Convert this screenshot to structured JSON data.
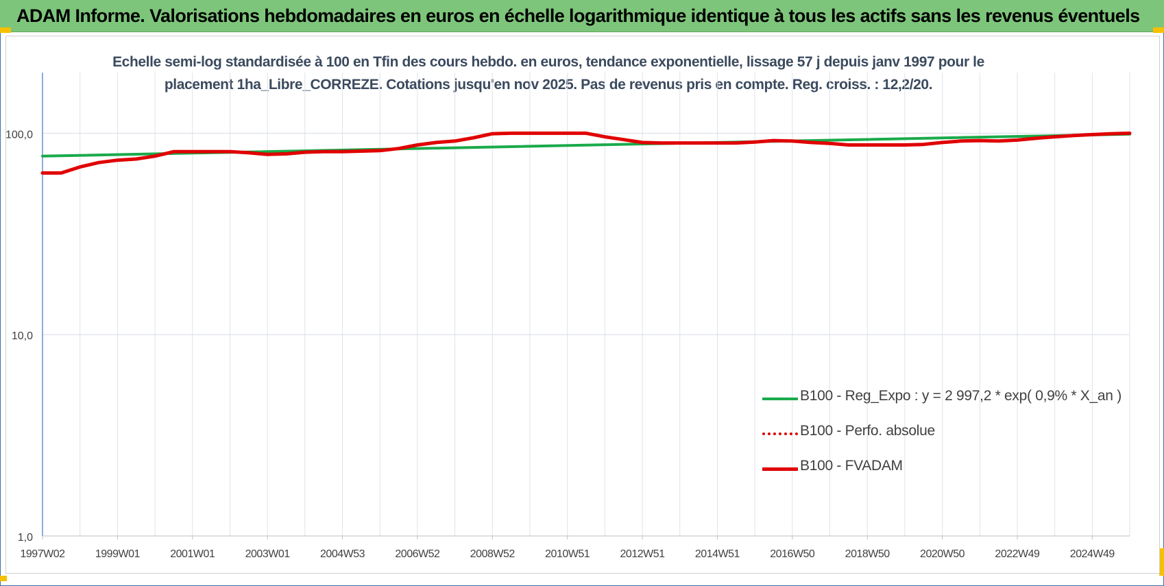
{
  "header": {
    "title": "ADAM Informe. Valorisations hebdomadaires en euros en échelle logarithmique identique à tous les actifs sans les revenus éventuels"
  },
  "chart_data": {
    "type": "line",
    "subtitle_line1": "Echelle semi-log standardisée à 100 en Tfin des cours hebdo. en euros, tendance exponentielle, lissage 57 j depuis janv 1997 pour le",
    "subtitle_line2": "placement 1ha_Libre_CORREZE. Cotations jusqu'en nov 2025. Pas de revenus pris en compte. Reg. croiss. : 12,2/20.",
    "y_scale": "log",
    "ylim": [
      1,
      200
    ],
    "xlim": [
      1997.0,
      2026.0
    ],
    "y_ticks": [
      {
        "value": 1,
        "label": "1,0"
      },
      {
        "value": 10,
        "label": "10,0"
      },
      {
        "value": 100,
        "label": "100,0"
      }
    ],
    "x_ticks": [
      {
        "value": 1997.0,
        "label": "1997W02"
      },
      {
        "value": 1999.0,
        "label": "1999W01"
      },
      {
        "value": 2001.0,
        "label": "2001W01"
      },
      {
        "value": 2003.0,
        "label": "2003W01"
      },
      {
        "value": 2005.0,
        "label": "2004W53"
      },
      {
        "value": 2007.0,
        "label": "2006W52"
      },
      {
        "value": 2009.0,
        "label": "2008W52"
      },
      {
        "value": 2011.0,
        "label": "2010W51"
      },
      {
        "value": 2013.0,
        "label": "2012W51"
      },
      {
        "value": 2015.0,
        "label": "2014W51"
      },
      {
        "value": 2017.0,
        "label": "2016W50"
      },
      {
        "value": 2019.0,
        "label": "2018W50"
      },
      {
        "value": 2021.0,
        "label": "2020W50"
      },
      {
        "value": 2023.0,
        "label": "2022W49"
      },
      {
        "value": 2025.0,
        "label": "2024W49"
      }
    ],
    "grid": true,
    "legend_position": "bottom-right",
    "series": [
      {
        "name": "B100 - Reg_Expo : y = 2 997,2 * exp( 0,9% *  X_an )",
        "color": "#1aaa4a",
        "style": "solid",
        "points": [
          [
            1997.0,
            77
          ],
          [
            2026.0,
            99
          ]
        ]
      },
      {
        "name": "B100 - Perfo. absolue",
        "color": "#e00000",
        "style": "dotted",
        "points": [
          [
            1997.0,
            63.5
          ],
          [
            1997.5,
            63.5
          ],
          [
            1998.0,
            68
          ],
          [
            1998.5,
            71.5
          ],
          [
            1999.0,
            73.5
          ],
          [
            1999.5,
            74.5
          ],
          [
            2000.0,
            77
          ],
          [
            2000.5,
            81
          ],
          [
            2001.0,
            81
          ],
          [
            2001.5,
            81
          ],
          [
            2002.0,
            81
          ],
          [
            2002.5,
            80
          ],
          [
            2003.0,
            78.5
          ],
          [
            2003.5,
            79
          ],
          [
            2004.0,
            80.5
          ],
          [
            2004.5,
            81
          ],
          [
            2005.0,
            81
          ],
          [
            2005.5,
            81.5
          ],
          [
            2006.0,
            82
          ],
          [
            2006.5,
            84
          ],
          [
            2007.0,
            87.5
          ],
          [
            2007.5,
            90
          ],
          [
            2008.0,
            91.5
          ],
          [
            2008.5,
            95
          ],
          [
            2009.0,
            99.5
          ],
          [
            2009.5,
            100
          ],
          [
            2010.0,
            100
          ],
          [
            2010.5,
            100
          ],
          [
            2011.0,
            100
          ],
          [
            2011.5,
            100
          ],
          [
            2012.0,
            96
          ],
          [
            2012.5,
            93
          ],
          [
            2013.0,
            90
          ],
          [
            2013.5,
            89.5
          ],
          [
            2014.0,
            89.5
          ],
          [
            2014.5,
            89.5
          ],
          [
            2015.0,
            89.5
          ],
          [
            2015.5,
            89.5
          ],
          [
            2016.0,
            90.5
          ],
          [
            2016.5,
            92
          ],
          [
            2017.0,
            91.5
          ],
          [
            2017.5,
            90
          ],
          [
            2018.0,
            89
          ],
          [
            2018.5,
            87.5
          ],
          [
            2019.0,
            87.5
          ],
          [
            2019.5,
            87.5
          ],
          [
            2020.0,
            87.5
          ],
          [
            2020.5,
            88
          ],
          [
            2021.0,
            90
          ],
          [
            2021.5,
            91.5
          ],
          [
            2022.0,
            92
          ],
          [
            2022.5,
            91.5
          ],
          [
            2023.0,
            92.5
          ],
          [
            2023.5,
            94.5
          ],
          [
            2024.0,
            96
          ],
          [
            2024.5,
            97.5
          ],
          [
            2025.0,
            98.5
          ],
          [
            2025.5,
            99.5
          ],
          [
            2026.0,
            100
          ]
        ]
      },
      {
        "name": "B100 - FVADAM",
        "color": "#e00000",
        "style": "solid",
        "points": [
          [
            1997.0,
            63.5
          ],
          [
            1997.5,
            63.5
          ],
          [
            1998.0,
            68
          ],
          [
            1998.5,
            71.5
          ],
          [
            1999.0,
            73.5
          ],
          [
            1999.5,
            74.5
          ],
          [
            2000.0,
            77
          ],
          [
            2000.5,
            81
          ],
          [
            2001.0,
            81
          ],
          [
            2001.5,
            81
          ],
          [
            2002.0,
            81
          ],
          [
            2002.5,
            80
          ],
          [
            2003.0,
            78.5
          ],
          [
            2003.5,
            79
          ],
          [
            2004.0,
            80.5
          ],
          [
            2004.5,
            81
          ],
          [
            2005.0,
            81
          ],
          [
            2005.5,
            81.5
          ],
          [
            2006.0,
            82
          ],
          [
            2006.5,
            84
          ],
          [
            2007.0,
            87.5
          ],
          [
            2007.5,
            90
          ],
          [
            2008.0,
            91.5
          ],
          [
            2008.5,
            95
          ],
          [
            2009.0,
            99.5
          ],
          [
            2009.5,
            100
          ],
          [
            2010.0,
            100
          ],
          [
            2010.5,
            100
          ],
          [
            2011.0,
            100
          ],
          [
            2011.5,
            100
          ],
          [
            2012.0,
            96
          ],
          [
            2012.5,
            93
          ],
          [
            2013.0,
            90
          ],
          [
            2013.5,
            89.5
          ],
          [
            2014.0,
            89.5
          ],
          [
            2014.5,
            89.5
          ],
          [
            2015.0,
            89.5
          ],
          [
            2015.5,
            89.5
          ],
          [
            2016.0,
            90.5
          ],
          [
            2016.5,
            92
          ],
          [
            2017.0,
            91.5
          ],
          [
            2017.5,
            90
          ],
          [
            2018.0,
            89
          ],
          [
            2018.5,
            87.5
          ],
          [
            2019.0,
            87.5
          ],
          [
            2019.5,
            87.5
          ],
          [
            2020.0,
            87.5
          ],
          [
            2020.5,
            88
          ],
          [
            2021.0,
            90
          ],
          [
            2021.5,
            91.5
          ],
          [
            2022.0,
            92
          ],
          [
            2022.5,
            91.5
          ],
          [
            2023.0,
            92.5
          ],
          [
            2023.5,
            94.5
          ],
          [
            2024.0,
            96
          ],
          [
            2024.5,
            97.5
          ],
          [
            2025.0,
            98.5
          ],
          [
            2025.5,
            99.5
          ],
          [
            2026.0,
            100
          ]
        ]
      }
    ]
  }
}
